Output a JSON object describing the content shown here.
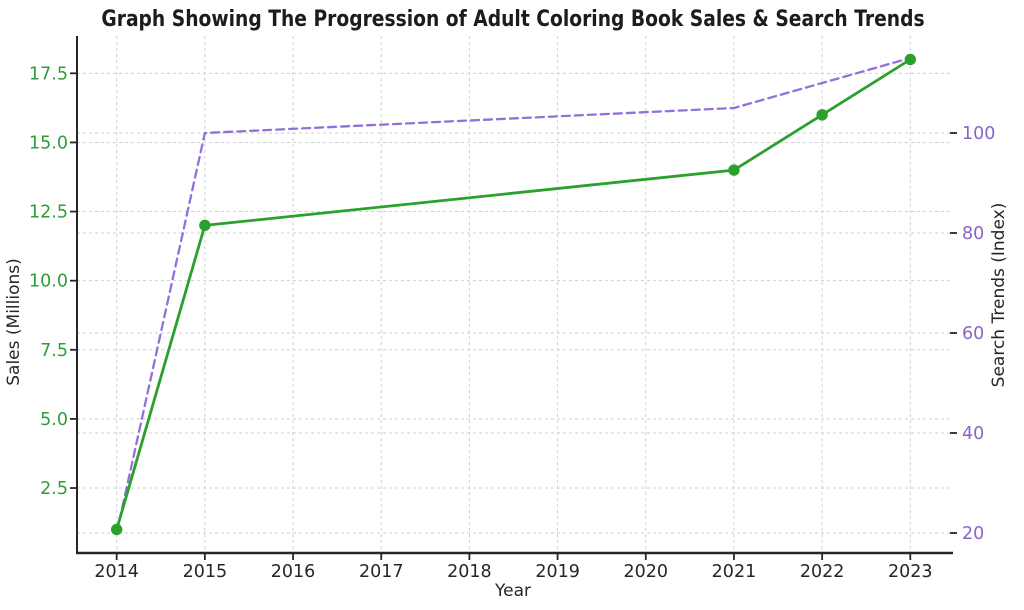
{
  "chart_data": {
    "type": "line",
    "title": "Graph Showing The Progression of Adult Coloring Book Sales & Search Trends",
    "xlabel": "Year",
    "x": [
      2014,
      2015,
      2021,
      2022,
      2023
    ],
    "x_ticks": [
      2014,
      2015,
      2016,
      2017,
      2018,
      2019,
      2020,
      2021,
      2022,
      2023
    ],
    "xlim": [
      2013.55,
      2023.45
    ],
    "grid": true,
    "legend_position": "none",
    "series": [
      {
        "name": "Sales (Millions)",
        "axis": "left",
        "values": [
          1,
          12,
          14,
          16,
          18
        ],
        "color": "#2ca02c",
        "line_style": "solid",
        "marker": "circle"
      },
      {
        "name": "Search Trends (Index)",
        "axis": "right",
        "values": [
          20,
          100,
          105,
          110,
          115
        ],
        "color": "#9370db",
        "line_style": "dashed",
        "marker": "none"
      }
    ],
    "left_axis": {
      "label": "Sales (Millions)",
      "color": "#2e9e38",
      "ticks": [
        2.5,
        5.0,
        7.5,
        10.0,
        12.5,
        15.0,
        17.5
      ],
      "tick_labels": [
        "2.5",
        "5.0",
        "7.5",
        "10.0",
        "12.5",
        "15.0",
        "17.5"
      ],
      "ylim": [
        0.15,
        18.85
      ]
    },
    "right_axis": {
      "label": "Search Trends (Index)",
      "color": "#8a63c9",
      "ticks": [
        20,
        40,
        60,
        80,
        100
      ],
      "tick_labels": [
        "20",
        "40",
        "60",
        "80",
        "100"
      ],
      "ylim": [
        16,
        119.4
      ]
    },
    "style": {
      "grid_color": "#cfcfcf",
      "spine_color": "#262626",
      "tick_color": "#262626",
      "x_tick_label_color": "#262626"
    }
  }
}
